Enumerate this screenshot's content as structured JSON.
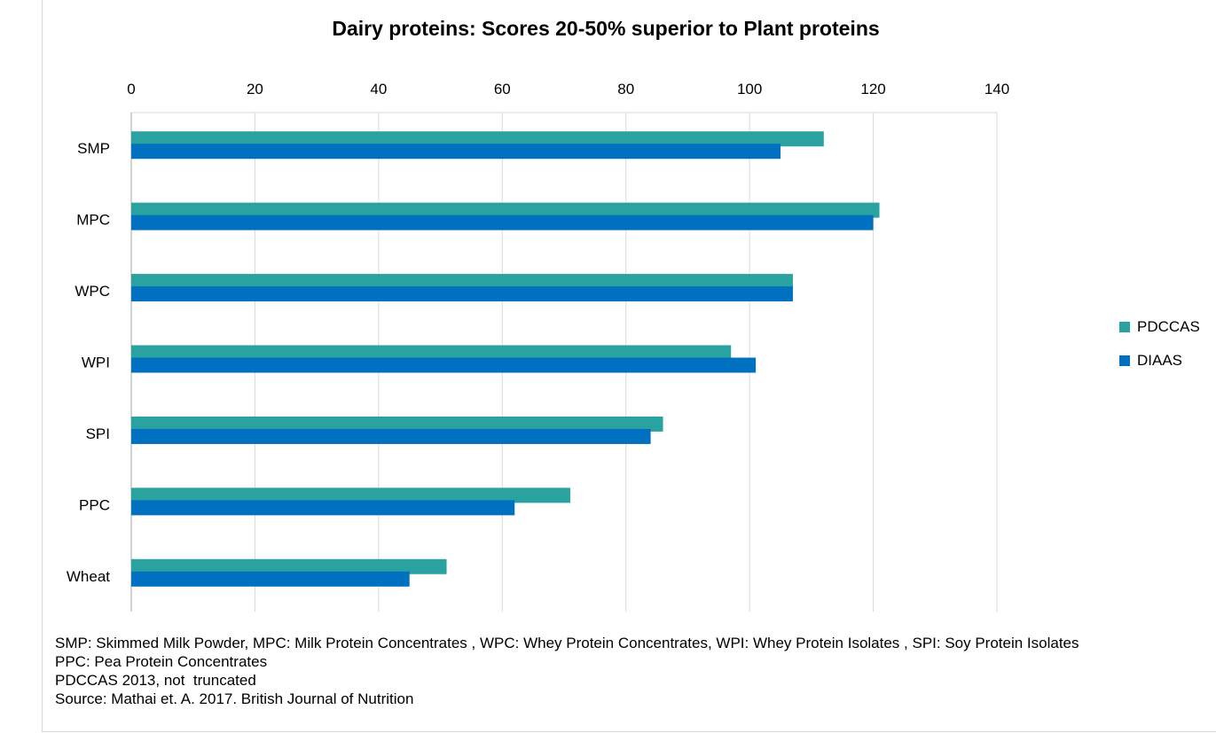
{
  "chart_data": {
    "type": "bar",
    "orientation": "horizontal",
    "title": "Dairy proteins: Scores 20-50% superior to Plant proteins",
    "categories": [
      "SMP",
      "MPC",
      "WPC",
      "WPI",
      "SPI",
      "PPC",
      "Wheat"
    ],
    "series": [
      {
        "name": "PDCCAS",
        "color": "#2AA3A0",
        "values": [
          112,
          121,
          107,
          97,
          86,
          71,
          51
        ]
      },
      {
        "name": "DIAAS",
        "color": "#0070C0",
        "values": [
          105,
          120,
          107,
          101,
          84,
          62,
          45
        ]
      }
    ],
    "xlim": [
      0,
      140
    ],
    "xticks": [
      0,
      20,
      40,
      60,
      80,
      100,
      120,
      140
    ],
    "xaxis_position": "top",
    "grid": true,
    "legend_position": "right"
  },
  "notes": [
    "SMP: Skimmed Milk Powder, MPC: Milk Protein Concentrates , WPC: Whey Protein Concentrates, WPI: Whey Protein Isolates , SPI: Soy Protein Isolates",
    "PPC: Pea Protein Concentrates",
    "PDCCAS 2013, not  truncated",
    "Source: Mathai et. A. 2017. British Journal of Nutrition"
  ]
}
